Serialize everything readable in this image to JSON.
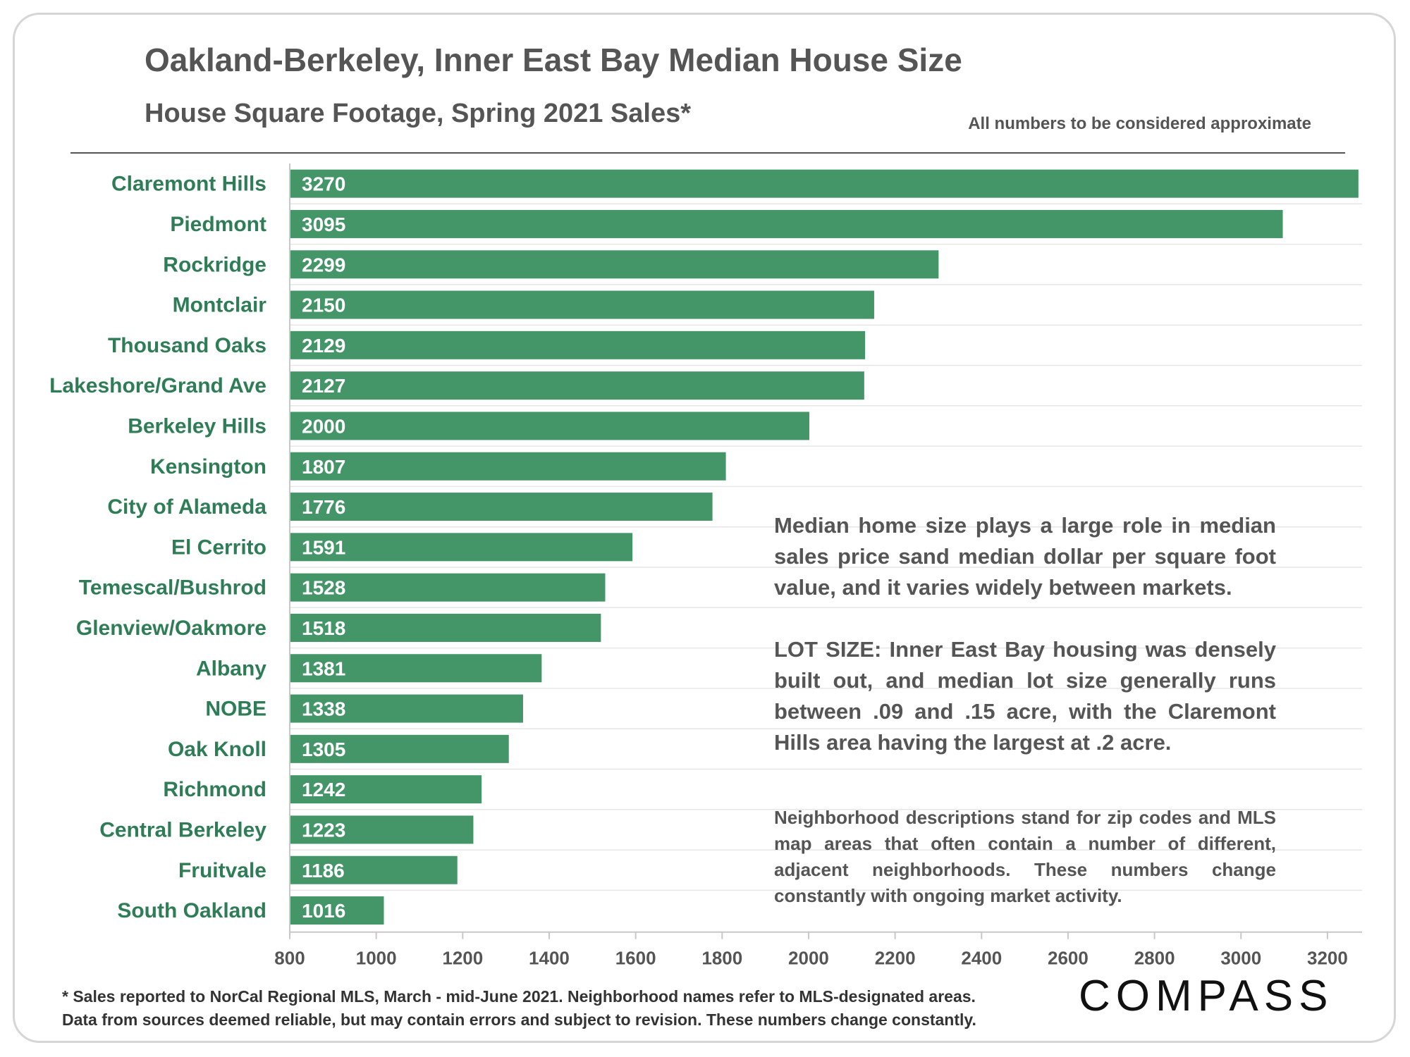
{
  "header": {
    "title": "Oakland-Berkeley, Inner East Bay Median House Size",
    "subtitle": "House Square Footage, Spring 2021 Sales*",
    "note": "All numbers to be considered approximate"
  },
  "annotations": {
    "p1": "Median home size plays a large role in median sales price sand median dollar per square foot value, and it varies widely between markets.",
    "p2": "LOT SIZE: Inner East Bay housing was densely built out, and median lot size generally runs between .09 and .15 acre, with the Claremont Hills area having the largest at .2 acre.",
    "p3": "Neighborhood descriptions stand for zip codes and MLS map areas that often contain a number of different, adjacent neighborhoods. These numbers change constantly with ongoing market activity."
  },
  "footer": {
    "line1": "* Sales reported to NorCal Regional MLS, March - mid-June 2021. Neighborhood names refer to MLS-designated areas.",
    "line2": "Data from sources deemed reliable, but may contain errors and subject to revision. These numbers change constantly.",
    "logo": "COMPASS"
  },
  "colors": {
    "bar": "#449669",
    "label": "#2f7d56",
    "text": "#555555"
  },
  "chart_data": {
    "type": "bar",
    "orientation": "horizontal",
    "categories": [
      "Claremont Hills",
      "Piedmont",
      "Rockridge",
      "Montclair",
      "Thousand Oaks",
      "Lakeshore/Grand Ave",
      "Berkeley Hills",
      "Kensington",
      "City of Alameda",
      "El Cerrito",
      "Temescal/Bushrod",
      "Glenview/Oakmore",
      "Albany",
      "NOBE",
      "Oak Knoll",
      "Richmond",
      "Central Berkeley",
      "Fruitvale",
      "South Oakland"
    ],
    "values": [
      3270,
      3095,
      2299,
      2150,
      2129,
      2127,
      2000,
      1807,
      1776,
      1591,
      1528,
      1518,
      1381,
      1338,
      1305,
      1242,
      1223,
      1186,
      1016
    ],
    "xlim": [
      800,
      3280
    ],
    "xticks": [
      800,
      1000,
      1200,
      1400,
      1600,
      1800,
      2000,
      2200,
      2400,
      2600,
      2800,
      3000,
      3200
    ],
    "grid": true,
    "data_labels": "inside-left"
  }
}
